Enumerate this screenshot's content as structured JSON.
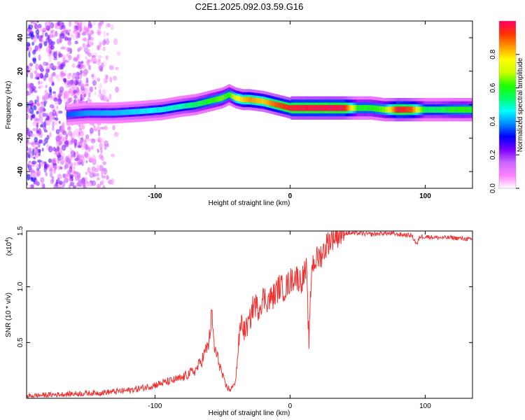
{
  "title": "C2E1.2025.092.03.59.G16",
  "chart_data": [
    {
      "type": "heatmap",
      "xlabel": "Height of straight line (km)",
      "ylabel": "Frequency (Hz)",
      "xlim": [
        -195,
        135
      ],
      "ylim": [
        -50,
        50
      ],
      "xticks": [
        -100,
        0,
        100
      ],
      "yticks": [
        -40,
        -20,
        0,
        20,
        40
      ],
      "colorbar": {
        "label": "Normalized spectral amplitude",
        "range": [
          0,
          1
        ],
        "ticks": [
          "0.0",
          "0.2",
          "0.4",
          "0.6",
          "0.8"
        ],
        "colormap": [
          "#ffffff",
          "#ff80ff",
          "#cc66ff",
          "#7a00ff",
          "#0000ff",
          "#0088ff",
          "#00ffff",
          "#00ff66",
          "#22ff00",
          "#ccff00",
          "#ffff00",
          "#ff9900",
          "#ff3300",
          "#ff0066"
        ]
      },
      "ridge": {
        "note_free": true,
        "x": [
          -165,
          -150,
          -130,
          -110,
          -95,
          -80,
          -70,
          -60,
          -50,
          -45,
          -40,
          -35,
          -30,
          -20,
          -10,
          0,
          10,
          20,
          30,
          40,
          50,
          60,
          70,
          80,
          90,
          100,
          110,
          120,
          130,
          135
        ],
        "y": [
          -6,
          -5,
          -5,
          -4,
          -3,
          -1,
          0,
          2,
          4,
          6,
          4,
          3,
          3,
          2,
          0,
          -2,
          -2,
          -2,
          -2,
          -2,
          -2,
          -2,
          -3,
          -3,
          -3,
          -3,
          -3,
          -3,
          -3,
          -3
        ],
        "amplitude": [
          0.35,
          0.4,
          0.42,
          0.45,
          0.48,
          0.5,
          0.55,
          0.6,
          0.65,
          0.6,
          0.75,
          0.8,
          0.85,
          0.8,
          0.9,
          0.95,
          0.97,
          0.97,
          0.98,
          0.97,
          0.6,
          0.6,
          0.65,
          0.97,
          0.9,
          0.55,
          0.55,
          0.6,
          0.62,
          0.6
        ]
      }
    },
    {
      "type": "line",
      "xlabel": "Height of straight line (km)",
      "ylabel": "SNR (10 * v/v)",
      "y_multiplier": "(x10",
      "y_multiplier_exp": "4",
      "xlim": [
        -195,
        135
      ],
      "ylim": [
        0,
        1.5
      ],
      "xticks": [
        -100,
        0,
        100
      ],
      "yticks": [
        "0.5",
        "1.0",
        "1.5"
      ],
      "color": "#ee3333",
      "series": [
        {
          "x": [
            -195,
            -180,
            -160,
            -140,
            -120,
            -110,
            -100,
            -90,
            -80,
            -75,
            -70,
            -65,
            -60,
            -58,
            -56,
            -52,
            -50,
            -48,
            -45,
            -42,
            -40,
            -38,
            -36,
            -34,
            -30,
            -28,
            -26,
            -24,
            -20,
            -16,
            -12,
            -8,
            -4,
            0,
            4,
            8,
            12,
            14,
            16,
            20,
            24,
            28,
            32,
            36,
            40,
            50,
            60,
            70,
            80,
            90,
            94,
            96,
            100,
            110,
            120,
            130,
            135
          ],
          "y": [
            0.02,
            0.03,
            0.04,
            0.05,
            0.07,
            0.09,
            0.12,
            0.15,
            0.18,
            0.22,
            0.25,
            0.35,
            0.5,
            0.75,
            0.45,
            0.3,
            0.2,
            0.12,
            0.08,
            0.1,
            0.2,
            0.5,
            0.7,
            0.6,
            0.68,
            0.8,
            0.85,
            0.8,
            0.9,
            0.88,
            0.92,
            1.0,
            0.98,
            1.05,
            1.1,
            1.05,
            1.15,
            0.5,
            1.2,
            1.25,
            1.3,
            1.4,
            1.45,
            1.47,
            1.48,
            1.48,
            1.47,
            1.48,
            1.47,
            1.46,
            1.38,
            1.45,
            1.45,
            1.44,
            1.44,
            1.43,
            1.42
          ]
        }
      ]
    }
  ]
}
